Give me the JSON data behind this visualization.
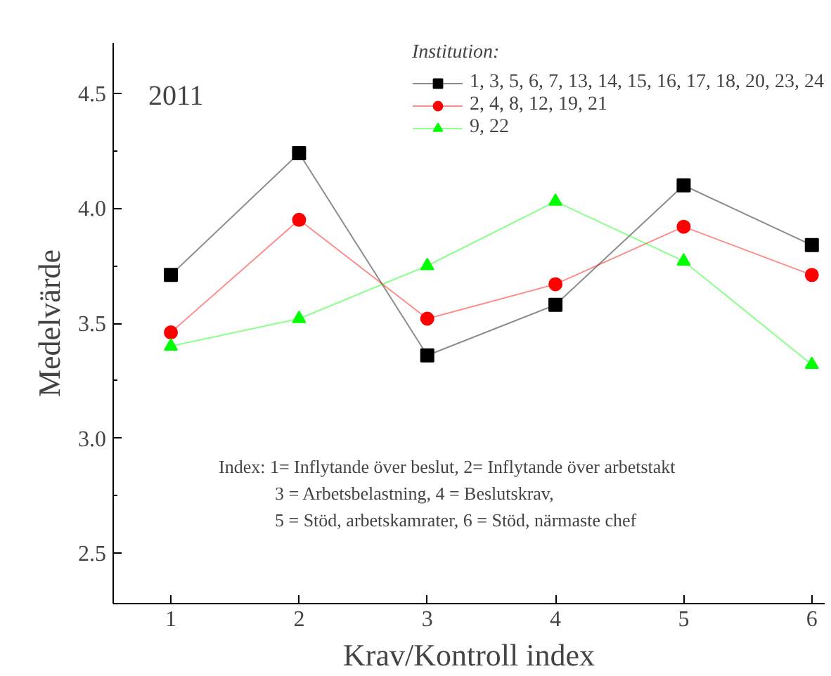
{
  "chart_data": {
    "type": "line",
    "title": "2011",
    "xlabel": "Krav/Kontroll index",
    "ylabel": "Medelvärde",
    "legend_title": "Institution:",
    "x": [
      1,
      2,
      3,
      4,
      5,
      6
    ],
    "series": [
      {
        "name": "1, 3, 5, 6, 7, 13, 14, 15, 16, 17, 18, 20, 23, 24",
        "color": "#000000",
        "marker": "square",
        "values": [
          3.71,
          4.24,
          3.36,
          3.58,
          4.1,
          3.84
        ]
      },
      {
        "name": "2, 4, 8, 12, 19, 21",
        "color": "#ff0000",
        "marker": "circle",
        "values": [
          3.46,
          3.95,
          3.52,
          3.67,
          3.92,
          3.71
        ]
      },
      {
        "name": "9, 22",
        "color": "#00ff00",
        "marker": "triangle",
        "values": [
          3.4,
          3.52,
          3.75,
          4.03,
          3.77,
          3.32
        ]
      }
    ],
    "xlim": [
      0.55,
      6.1
    ],
    "ylim": [
      2.28,
      4.72
    ],
    "xticks": [
      1,
      2,
      3,
      4,
      5,
      6
    ],
    "yticks": [
      {
        "value": 2.5,
        "label": "2.5"
      },
      {
        "value": 2.75,
        "label": null
      },
      {
        "value": 3.0,
        "label": "3.0"
      },
      {
        "value": 3.25,
        "label": null
      },
      {
        "value": 3.5,
        "label": "3.5"
      },
      {
        "value": 3.75,
        "label": null
      },
      {
        "value": 4.0,
        "label": "4.0"
      },
      {
        "value": 4.25,
        "label": null
      },
      {
        "value": 4.5,
        "label": "4.5"
      }
    ],
    "annotations": [
      "Index: 1= Inflytande över beslut,   2= Inflytande över arbetstakt",
      "3 = Arbetsbelastning,          4 = Beslutskrav,",
      "5 = Stöd, arbetskamrater,    6 = Stöd, närmaste chef"
    ],
    "legend": "top right",
    "grid": false,
    "line_style": "solid"
  }
}
